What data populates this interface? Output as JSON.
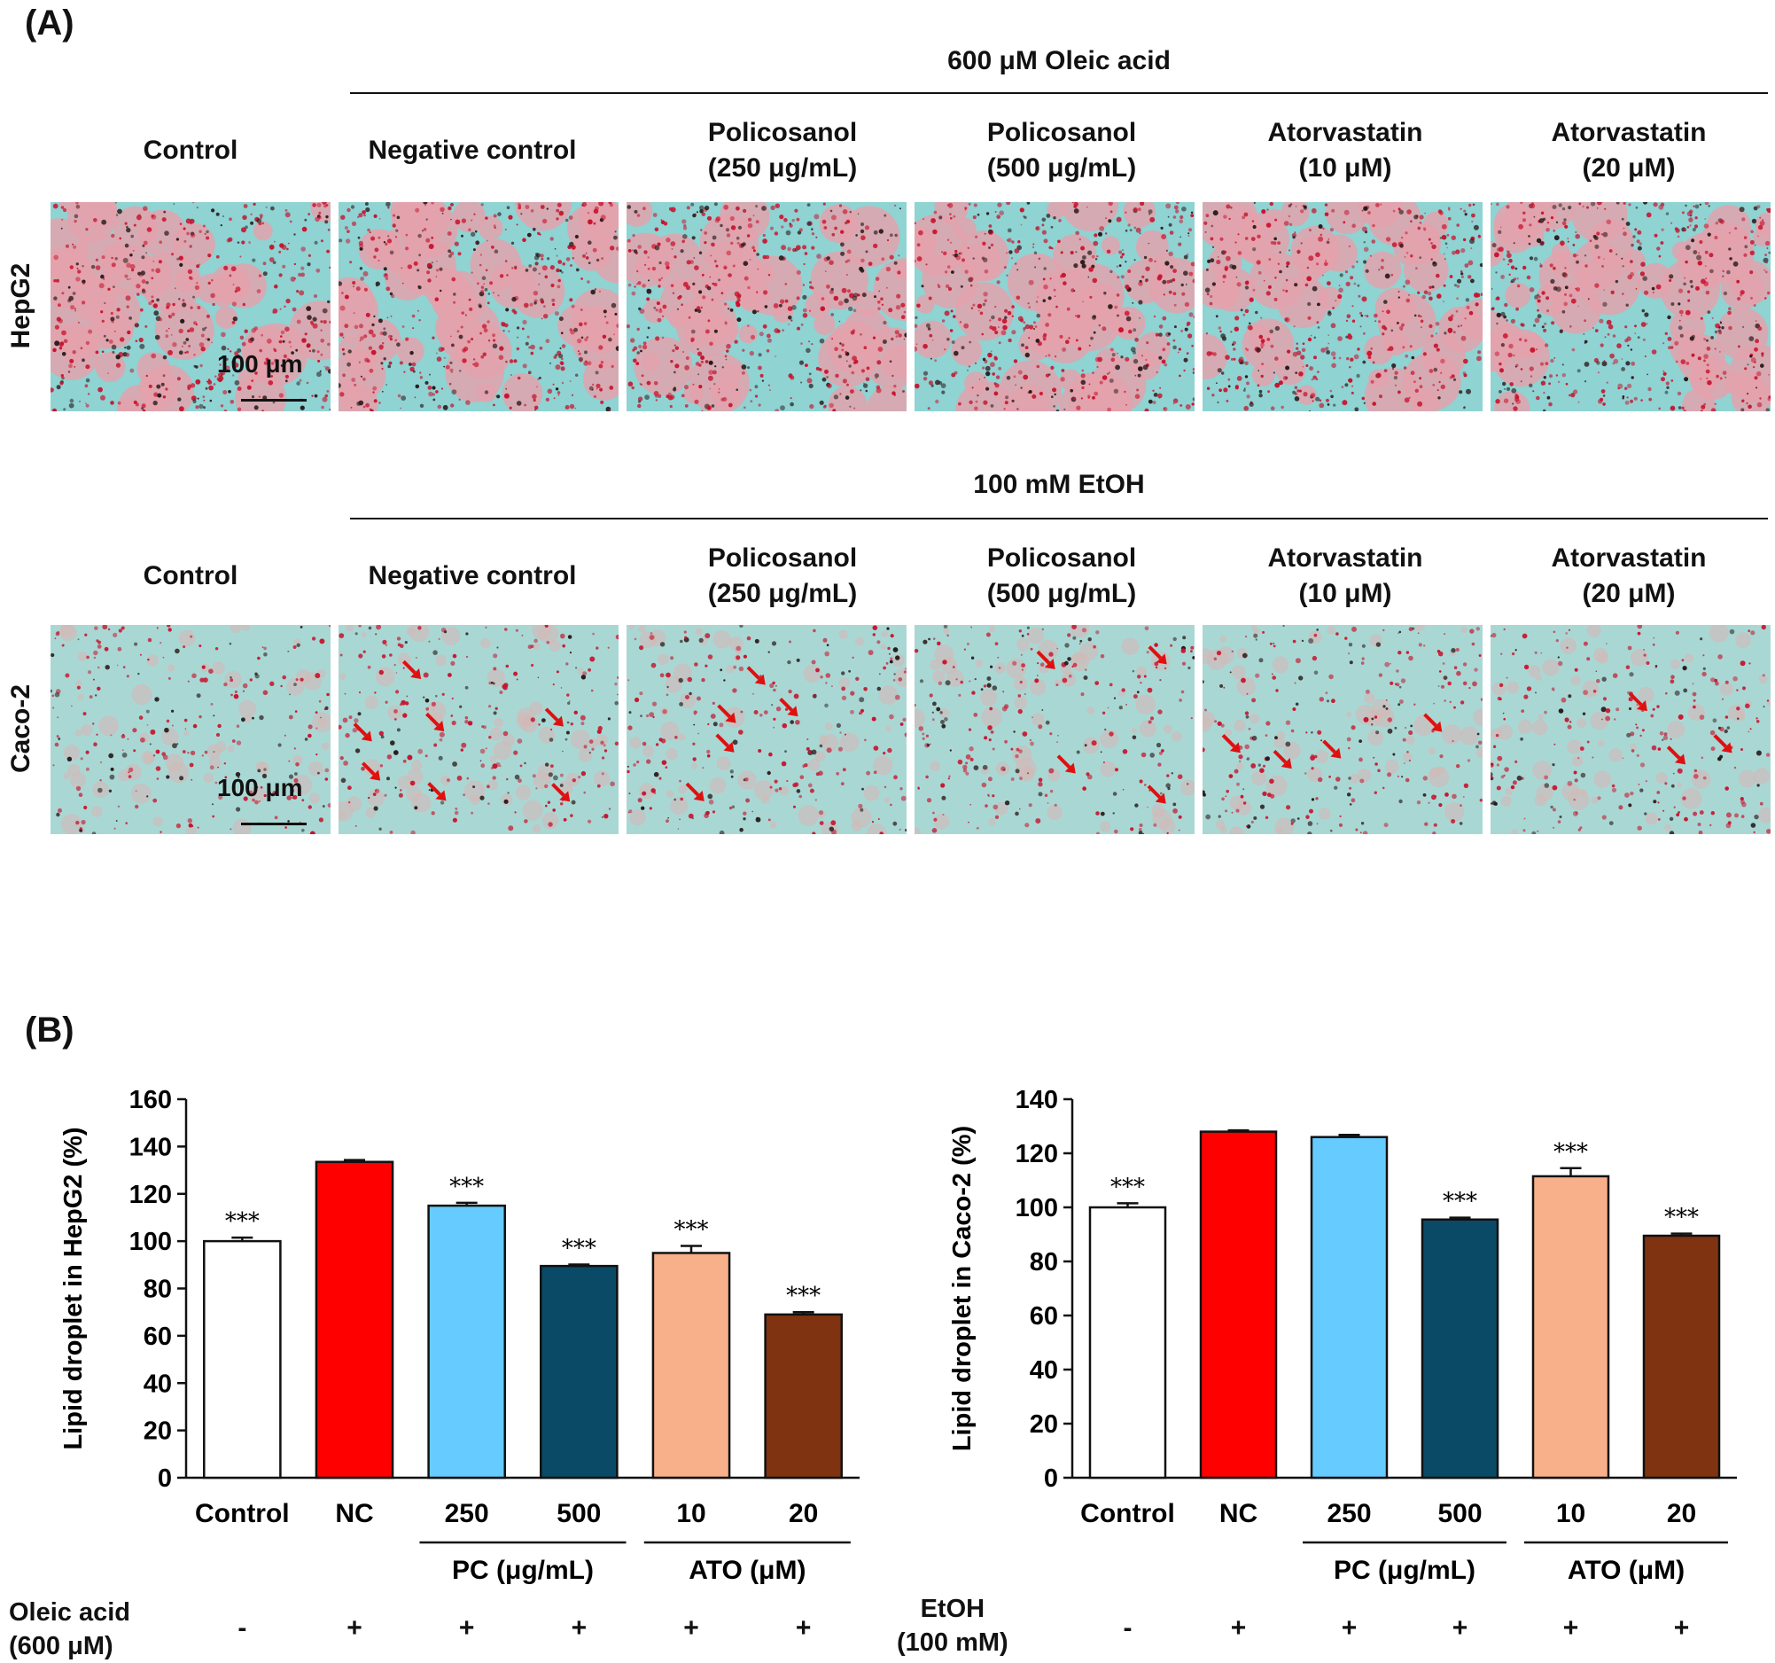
{
  "panelA": {
    "letter": "(A)",
    "rows": [
      {
        "cell_line": "HepG2",
        "treatment_group": "600 μM Oleic acid",
        "style": "hepg2",
        "scale_label": "100 μm",
        "columns": [
          {
            "line1": "Control",
            "line2": ""
          },
          {
            "line1": "Negative control",
            "line2": ""
          },
          {
            "line1": "Policosanol",
            "line2": "(250 μg/mL)"
          },
          {
            "line1": "Policosanol",
            "line2": "(500 μg/mL)"
          },
          {
            "line1": "Atorvastatin",
            "line2": "(10 μM)"
          },
          {
            "line1": "Atorvastatin",
            "line2": "(20 μM)"
          }
        ]
      },
      {
        "cell_line": "Caco-2",
        "treatment_group": "100 mM EtOH",
        "style": "caco2",
        "scale_label": "100 μm",
        "columns": [
          {
            "line1": "Control",
            "line2": ""
          },
          {
            "line1": "Negative control",
            "line2": ""
          },
          {
            "line1": "Policosanol",
            "line2": "(250 μg/mL)"
          },
          {
            "line1": "Policosanol",
            "line2": "(500 μg/mL)"
          },
          {
            "line1": "Atorvastatin",
            "line2": "(10 μM)"
          },
          {
            "line1": "Atorvastatin",
            "line2": "(20 μM)"
          }
        ]
      }
    ],
    "image_colors": {
      "background": "#8fd3d3",
      "lipid": "#c8142e",
      "dark": "#2a1a1a"
    }
  },
  "panelB": {
    "letter": "(B)",
    "group_labels": {
      "pc": "PC (μg/mL)",
      "ato": "ATO (μM)"
    },
    "conditions": [
      {
        "line1": "Oleic acid",
        "line2": "(600 μM)",
        "signs": [
          "-",
          "+",
          "+",
          "+",
          "+",
          "+"
        ]
      },
      {
        "line1": "EtOH",
        "line2": "(100 mM)",
        "signs": [
          "-",
          "+",
          "+",
          "+",
          "+",
          "+"
        ]
      }
    ]
  },
  "chart_data": [
    {
      "type": "bar",
      "categories": [
        "Control",
        "NC",
        "250",
        "500",
        "10",
        "20"
      ],
      "values": [
        100,
        133.5,
        115,
        89.5,
        95,
        69
      ],
      "errors": [
        1.5,
        0.8,
        1.2,
        0.6,
        3,
        1
      ],
      "significance": [
        "***",
        "",
        "***",
        "***",
        "***",
        "***"
      ],
      "colors": [
        "#ffffff",
        "#ff0000",
        "#66ccff",
        "#0b4a66",
        "#f8b08a",
        "#7f3310"
      ],
      "title": "",
      "xlabel": "",
      "ylabel": "Lipid droplet in HepG2 (%)",
      "ylim": [
        0,
        160
      ],
      "yticks": [
        0,
        20,
        40,
        60,
        80,
        100,
        120,
        140,
        160
      ],
      "grid": false
    },
    {
      "type": "bar",
      "categories": [
        "Control",
        "NC",
        "250",
        "500",
        "10",
        "20"
      ],
      "values": [
        100,
        128,
        126,
        95.5,
        111.5,
        89.5
      ],
      "errors": [
        1.5,
        0.5,
        0.8,
        0.7,
        3,
        0.8
      ],
      "significance": [
        "***",
        "",
        "",
        "***",
        "***",
        "***"
      ],
      "colors": [
        "#ffffff",
        "#ff0000",
        "#66ccff",
        "#0b4a66",
        "#f8b08a",
        "#7f3310"
      ],
      "title": "",
      "xlabel": "",
      "ylabel": "Lipid droplet in Caco-2 (%)",
      "ylim": [
        0,
        140
      ],
      "yticks": [
        0,
        20,
        40,
        60,
        80,
        100,
        120,
        140
      ],
      "grid": false
    }
  ]
}
